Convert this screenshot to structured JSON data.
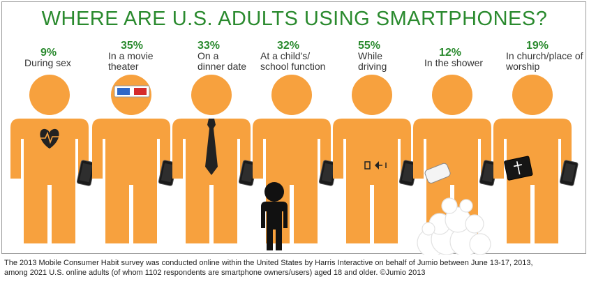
{
  "title": "WHERE ARE U.S. ADULTS USING SMARTPHONES?",
  "chart_data": {
    "type": "pictograph",
    "unit": "%",
    "categories": [
      "During sex",
      "In a movie theater",
      "On a dinner date",
      "At a child's/ school function",
      "While driving",
      "In the shower",
      "In church/place of worship"
    ],
    "values": [
      9,
      35,
      33,
      32,
      55,
      12,
      19
    ]
  },
  "items": [
    {
      "pct": "9%",
      "label": [
        "During sex"
      ]
    },
    {
      "pct": "35%",
      "label": [
        "In a movie",
        "theater"
      ]
    },
    {
      "pct": "33%",
      "label": [
        "On a",
        "dinner date"
      ]
    },
    {
      "pct": "32%",
      "label": [
        "At a child's/",
        "school function"
      ]
    },
    {
      "pct": "55%",
      "label": [
        "While",
        "driving"
      ]
    },
    {
      "pct": "12%",
      "label": [
        "In the shower"
      ]
    },
    {
      "pct": "19%",
      "label": [
        "In church/place of",
        "worship"
      ]
    }
  ],
  "footer": [
    "The 2013 Mobile Consumer Habit survey was conducted online within the United States by Harris Interactive on behalf of Jumio between June 13-17, 2013,",
    "among 2021 U.S. online adults (of whom 1102 respondents are smartphone owners/users) aged 18 and older. ©Jumio 2013"
  ],
  "colors": {
    "figure": "#f7a13e",
    "accent": "#2a8a2e",
    "phone": "#1a1a1a"
  },
  "icons": [
    "heart-icon",
    "3d-glasses-icon",
    "necktie-icon",
    "child-icon",
    "steering-icon",
    "soap-icon",
    "bible-icon",
    "smartphone-icon",
    "bubbles-icon"
  ]
}
